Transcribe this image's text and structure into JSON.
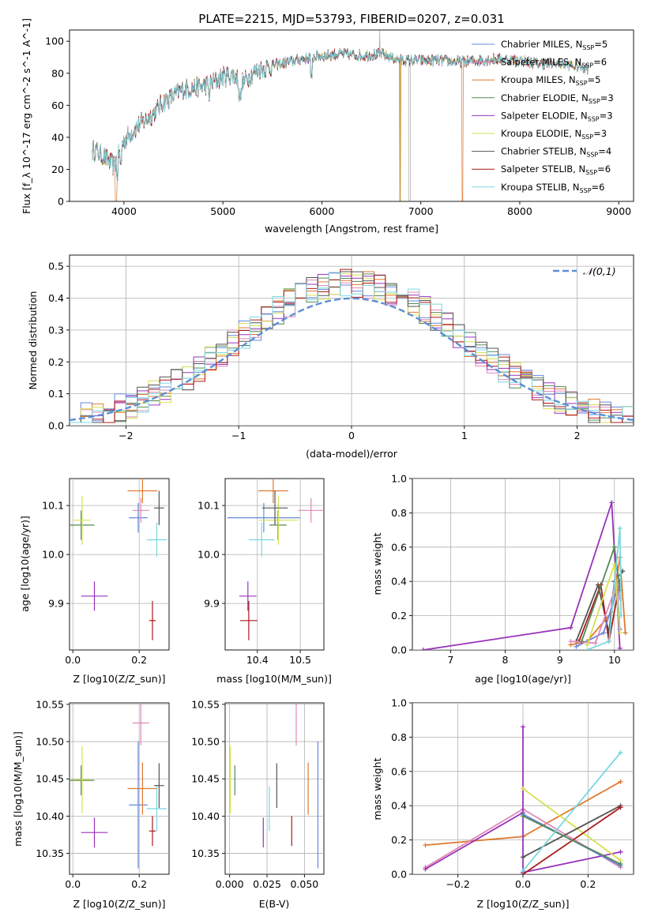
{
  "figure_title": "PLATE=2215, MJD=53793, FIBERID=0207, z=0.031",
  "colors": {
    "Chabrier MILES": "#6688dd",
    "Salpeter MILES": "#e088b8",
    "Kroupa MILES": "#e07a30",
    "Chabrier ELODIE": "#558855",
    "Salpeter ELODIE": "#9933bb",
    "Kroupa ELODIE": "#d6e050",
    "Chabrier STELIB": "#555555",
    "Salpeter STELIB": "#aa1a1a",
    "Kroupa STELIB": "#7ad8e0"
  },
  "chart_data": [
    {
      "id": "spectrum",
      "type": "line",
      "title": "PLATE=2215, MJD=53793, FIBERID=0207, z=0.031",
      "xlabel": "wavelength [Angstrom, rest frame]",
      "ylabel": "Flux [f_λ 10^-17 erg cm^-2 s^-1 A^-1]",
      "xlim": [
        3450,
        9150
      ],
      "ylim": [
        0,
        107
      ],
      "xticks": [
        "4000",
        "5000",
        "6000",
        "7000",
        "8000",
        "9000"
      ],
      "yticks": [
        "0",
        "20",
        "40",
        "60",
        "80",
        "100"
      ],
      "legend_position": "upper-right",
      "legend": [
        {
          "name": "Chabrier MILES",
          "nssp": "5"
        },
        {
          "name": "Salpeter MILES",
          "nssp": "6"
        },
        {
          "name": "Kroupa MILES",
          "nssp": "5"
        },
        {
          "name": "Chabrier ELODIE",
          "nssp": "3"
        },
        {
          "name": "Salpeter ELODIE",
          "nssp": "3"
        },
        {
          "name": "Kroupa ELODIE",
          "nssp": "3"
        },
        {
          "name": "Chabrier STELIB",
          "nssp": "4"
        },
        {
          "name": "Salpeter STELIB",
          "nssp": "6"
        },
        {
          "name": "Kroupa STELIB",
          "nssp": "6"
        }
      ],
      "continuum": [
        [
          3700,
          32
        ],
        [
          3800,
          28
        ],
        [
          3900,
          22
        ],
        [
          3950,
          30
        ],
        [
          4000,
          38
        ],
        [
          4100,
          45
        ],
        [
          4200,
          50
        ],
        [
          4300,
          55
        ],
        [
          4400,
          62
        ],
        [
          4500,
          66
        ],
        [
          4600,
          70
        ],
        [
          4700,
          71
        ],
        [
          4800,
          72
        ],
        [
          4900,
          74
        ],
        [
          5000,
          78
        ],
        [
          5100,
          79
        ],
        [
          5200,
          74
        ],
        [
          5300,
          80
        ],
        [
          5400,
          83
        ],
        [
          5600,
          86
        ],
        [
          5800,
          89
        ],
        [
          6000,
          91
        ],
        [
          6200,
          92
        ],
        [
          6400,
          91
        ],
        [
          6600,
          92
        ],
        [
          6800,
          88
        ],
        [
          7000,
          88
        ],
        [
          7200,
          88
        ],
        [
          7400,
          87
        ],
        [
          7600,
          88
        ],
        [
          7800,
          89
        ],
        [
          8000,
          88
        ],
        [
          8200,
          86
        ],
        [
          8400,
          86
        ],
        [
          8600,
          84
        ],
        [
          8700,
          83
        ]
      ],
      "gaps": [
        [
          3920,
          "Kroupa MILES"
        ],
        [
          6790,
          "Kroupa MILES"
        ],
        [
          7420,
          "Kroupa MILES"
        ]
      ]
    },
    {
      "id": "residuals",
      "type": "step",
      "xlabel": "(data-model)/error",
      "ylabel": "Normed distribution",
      "xlim": [
        -2.5,
        2.5
      ],
      "ylim": [
        0,
        0.535
      ],
      "xticks": [
        "−2",
        "−1",
        "0",
        "1",
        "2"
      ],
      "yticks": [
        "0.0",
        "0.1",
        "0.2",
        "0.3",
        "0.4",
        "0.5"
      ],
      "legend": "𝒩(0,1)",
      "legend_position": "upper-right",
      "grid": true
    },
    {
      "id": "age_vs_Z",
      "type": "errorbar",
      "xlabel": "Z [log10(Z/Z_sun)]",
      "ylabel": "age [log10(age/yr)]",
      "xlim": [
        -0.01,
        0.29
      ],
      "ylim": [
        9.805,
        10.155
      ],
      "xticks": [
        "0.0",
        "0.2"
      ],
      "yticks": [
        "9.9",
        "10.0",
        "10.1"
      ]
    },
    {
      "id": "age_vs_mass",
      "type": "errorbar",
      "xlabel": "mass [log10(M/M_sun)]",
      "ylabel": "",
      "xlim": [
        10.325,
        10.555
      ],
      "ylim": [
        9.805,
        10.155
      ],
      "xticks": [
        "10.4",
        "10.5"
      ],
      "yticks": [
        "9.9",
        "10.0",
        "10.1"
      ]
    },
    {
      "id": "weight_vs_age",
      "type": "line",
      "xlabel": "age [log10(age/yr)]",
      "ylabel": "mass weight",
      "xlim": [
        6.3,
        10.35
      ],
      "ylim": [
        0,
        1.0
      ],
      "xticks": [
        "7",
        "8",
        "9",
        "10"
      ],
      "yticks": [
        "0.0",
        "0.2",
        "0.4",
        "0.6",
        "0.8",
        "1.0"
      ]
    },
    {
      "id": "mass_vs_Z",
      "type": "errorbar",
      "xlabel": "Z [log10(Z/Z_sun)]",
      "ylabel": "mass [log10(M/M_sun)]",
      "xlim": [
        -0.01,
        0.29
      ],
      "ylim": [
        10.322,
        10.552
      ],
      "xticks": [
        "0.0",
        "0.2"
      ],
      "yticks": [
        "10.35",
        "10.40",
        "10.45",
        "10.50",
        "10.55"
      ]
    },
    {
      "id": "mass_vs_ebv",
      "type": "errorbar",
      "xlabel": "E(B-V)",
      "ylabel": "",
      "xlim": [
        -0.003,
        0.063
      ],
      "ylim": [
        10.322,
        10.552
      ],
      "xticks": [
        "0.000",
        "0.025",
        "0.050"
      ],
      "yticks": [
        "10.35",
        "10.40",
        "10.45",
        "10.50",
        "10.55"
      ]
    },
    {
      "id": "weight_vs_Z",
      "type": "line",
      "xlabel": "Z [log10(Z/Z_sun)]",
      "ylabel": "mass weight",
      "xlim": [
        -0.34,
        0.34
      ],
      "ylim": [
        0,
        1.0
      ],
      "xticks": [
        "−0.2",
        "0.0",
        "0.2"
      ],
      "yticks": [
        "0.0",
        "0.2",
        "0.4",
        "0.6",
        "0.8",
        "1.0"
      ]
    }
  ],
  "models": [
    {
      "name": "Chabrier MILES",
      "Z": 0.197,
      "Z_err": 0.028,
      "age": 10.075,
      "age_err": 0.03,
      "mass": 10.415,
      "mass_err": 0.085,
      "ebv": 0.059,
      "ebv_err": 0.04
    },
    {
      "name": "Salpeter MILES",
      "Z": 0.205,
      "Z_err": 0.025,
      "age": 10.09,
      "age_err": 0.025,
      "mass": 10.525,
      "mass_err": 0.03,
      "ebv": 0.0445,
      "ebv_err": 0.045
    },
    {
      "name": "Kroupa MILES",
      "Z": 0.21,
      "Z_err": 0.045,
      "age": 10.13,
      "age_err": 0.025,
      "mass": 10.437,
      "mass_err": 0.035,
      "ebv": 0.0525,
      "ebv_err": 0.055
    },
    {
      "name": "Chabrier ELODIE",
      "Z": 0.025,
      "Z_err": 0.04,
      "age": 10.06,
      "age_err": 0.03,
      "mass": 10.448,
      "mass_err": 0.02,
      "ebv": 0.0035,
      "ebv_err": 0.03
    },
    {
      "name": "Salpeter ELODIE",
      "Z": 0.065,
      "Z_err": 0.04,
      "age": 9.915,
      "age_err": 0.03,
      "mass": 10.378,
      "mass_err": 0.02,
      "ebv": 0.0225,
      "ebv_err": 0.03
    },
    {
      "name": "Kroupa ELODIE",
      "Z": 0.028,
      "Z_err": 0.025,
      "age": 10.07,
      "age_err": 0.05,
      "mass": 10.449,
      "mass_err": 0.045,
      "ebv": 0.0005,
      "ebv_err": 0.04
    },
    {
      "name": "Chabrier STELIB",
      "Z": 0.26,
      "Z_err": 0.015,
      "age": 10.095,
      "age_err": 0.035,
      "mass": 10.441,
      "mass_err": 0.03,
      "ebv": 0.0315,
      "ebv_err": 0.03
    },
    {
      "name": "Salpeter STELIB",
      "Z": 0.24,
      "Z_err": 0.01,
      "age": 9.865,
      "age_err": 0.04,
      "mass": 10.38,
      "mass_err": 0.02,
      "ebv": 0.0415,
      "ebv_err": 0.02
    },
    {
      "name": "Kroupa STELIB",
      "Z": 0.253,
      "Z_err": 0.03,
      "age": 10.03,
      "age_err": 0.035,
      "mass": 10.41,
      "mass_err": 0.03,
      "ebv": 0.0265,
      "ebv_err": 0.03
    }
  ],
  "weights_age": [
    {
      "name": "Salpeter ELODIE",
      "points": [
        [
          6.5,
          0.0
        ],
        [
          9.2,
          0.13
        ],
        [
          9.95,
          0.86
        ],
        [
          10.1,
          0.01
        ]
      ]
    },
    {
      "name": "Chabrier STELIB",
      "points": [
        [
          9.3,
          0.05
        ],
        [
          9.7,
          0.38
        ],
        [
          9.9,
          0.1
        ],
        [
          10.0,
          0.4
        ],
        [
          10.15,
          0.46
        ]
      ]
    },
    {
      "name": "Salpeter STELIB",
      "points": [
        [
          9.35,
          0.05
        ],
        [
          9.75,
          0.38
        ],
        [
          9.9,
          0.05
        ],
        [
          10.1,
          0.4
        ]
      ]
    },
    {
      "name": "Kroupa MILES",
      "points": [
        [
          9.2,
          0.03
        ],
        [
          9.5,
          0.05
        ],
        [
          9.95,
          0.22
        ],
        [
          10.1,
          0.54
        ],
        [
          10.2,
          0.1
        ]
      ]
    },
    {
      "name": "Chabrier MILES",
      "points": [
        [
          9.3,
          0.02
        ],
        [
          9.8,
          0.1
        ],
        [
          10.05,
          0.35
        ],
        [
          10.1,
          0.12
        ]
      ]
    },
    {
      "name": "Salpeter MILES",
      "points": [
        [
          9.2,
          0.05
        ],
        [
          9.65,
          0.04
        ],
        [
          10.05,
          0.39
        ],
        [
          10.1,
          0.3
        ]
      ]
    },
    {
      "name": "Chabrier ELODIE",
      "points": [
        [
          9.4,
          0.05
        ],
        [
          10.0,
          0.6
        ],
        [
          10.1,
          0.35
        ]
      ]
    },
    {
      "name": "Kroupa ELODIE",
      "points": [
        [
          9.5,
          0.03
        ],
        [
          10.0,
          0.5
        ],
        [
          10.1,
          0.1
        ]
      ]
    },
    {
      "name": "Kroupa STELIB",
      "points": [
        [
          9.5,
          0.0
        ],
        [
          9.9,
          0.05
        ],
        [
          10.1,
          0.71
        ],
        [
          10.12,
          0.2
        ]
      ]
    }
  ],
  "weights_Z": [
    {
      "name": "Kroupa MILES",
      "points": [
        [
          -0.3,
          0.17
        ],
        [
          0.0,
          0.22
        ],
        [
          0.3,
          0.54
        ]
      ]
    },
    {
      "name": "Salpeter MILES",
      "points": [
        [
          -0.3,
          0.04
        ],
        [
          0.0,
          0.38
        ],
        [
          0.3,
          0.04
        ]
      ]
    },
    {
      "name": "Salpeter ELODIE",
      "points": [
        [
          -0.3,
          0.03
        ],
        [
          0.0,
          0.36
        ],
        [
          0.0,
          0.86
        ],
        [
          0.0,
          0.01
        ],
        [
          0.3,
          0.13
        ]
      ]
    },
    {
      "name": "Kroupa ELODIE",
      "points": [
        [
          0.0,
          0.5
        ],
        [
          0.3,
          0.08
        ]
      ]
    },
    {
      "name": "Chabrier STELIB",
      "points": [
        [
          0.0,
          0.1
        ],
        [
          0.3,
          0.4
        ]
      ]
    },
    {
      "name": "Salpeter STELIB",
      "points": [
        [
          0.0,
          0.0
        ],
        [
          0.3,
          0.39
        ]
      ]
    },
    {
      "name": "Chabrier MILES",
      "points": [
        [
          0.0,
          0.35
        ],
        [
          0.3,
          0.05
        ]
      ]
    },
    {
      "name": "Chabrier ELODIE",
      "points": [
        [
          0.0,
          0.34
        ],
        [
          0.3,
          0.06
        ]
      ]
    },
    {
      "name": "Kroupa STELIB",
      "points": [
        [
          0.0,
          0.02
        ],
        [
          0.3,
          0.71
        ]
      ]
    }
  ]
}
